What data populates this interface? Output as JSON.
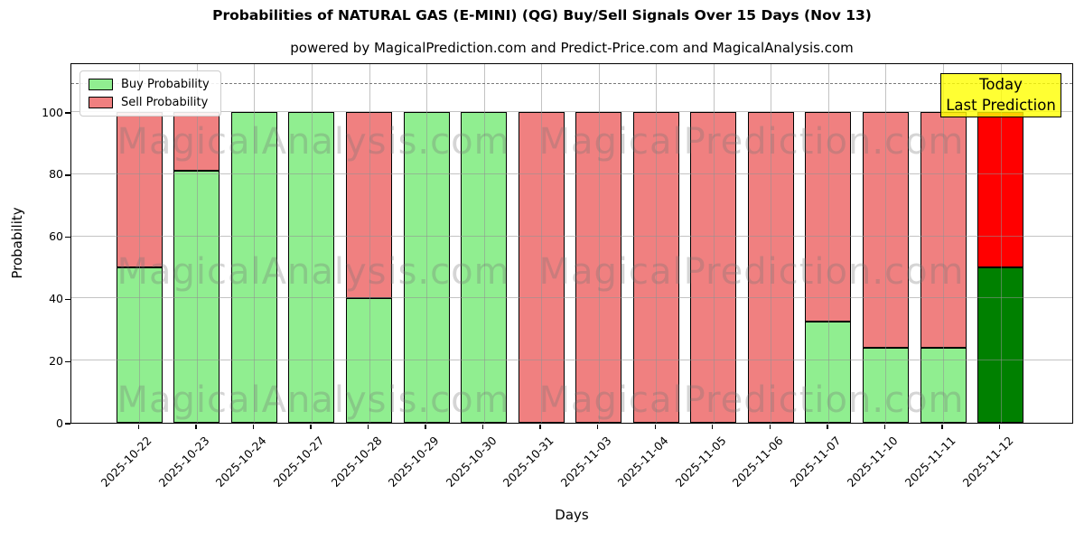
{
  "figure": {
    "title": "Probabilities of NATURAL GAS (E-MINI) (QG) Buy/Sell Signals Over 15 Days (Nov 13)",
    "subtitle": "powered by MagicalPrediction.com and Predict-Price.com and MagicalAnalysis.com"
  },
  "chart_data": {
    "type": "bar",
    "stacked": true,
    "title": "Probabilities of NATURAL GAS (E-MINI) (QG) Buy/Sell Signals Over 15 Days (Nov 13)",
    "subtitle": "powered by MagicalPrediction.com and Predict-Price.com and MagicalAnalysis.com",
    "xlabel": "Days",
    "ylabel": "Probability",
    "ylim": [
      0,
      116
    ],
    "yticks": [
      0,
      20,
      40,
      60,
      80,
      100
    ],
    "dashed_guide_y": 110,
    "grid": true,
    "legend_position": "upper left",
    "categories": [
      "2025-10-22",
      "2025-10-23",
      "2025-10-24",
      "2025-10-27",
      "2025-10-28",
      "2025-10-29",
      "2025-10-30",
      "2025-10-31",
      "2025-11-03",
      "2025-11-04",
      "2025-11-05",
      "2025-11-06",
      "2025-11-07",
      "2025-11-10",
      "2025-11-11",
      "2025-11-12"
    ],
    "series": [
      {
        "name": "Buy Probability",
        "color": "#90EE90",
        "today_color": "#008000",
        "values": [
          50,
          81,
          100,
          100,
          40,
          100,
          100,
          0,
          0,
          0,
          0,
          0,
          32.5,
          24,
          24,
          50
        ]
      },
      {
        "name": "Sell Probability",
        "color": "#F08080",
        "today_color": "#FF0000",
        "values": [
          50,
          19,
          0,
          0,
          60,
          0,
          0,
          100,
          100,
          100,
          100,
          100,
          67.5,
          76,
          76,
          50
        ]
      }
    ],
    "today_index": 15,
    "annotations": {
      "today_box": {
        "lines": [
          "Today",
          "Last Prediction"
        ],
        "bg": "#FFFF00"
      }
    },
    "watermarks": {
      "left_text": "MagicalAnalysis.com",
      "right_text": "MagicalPrediction.com"
    }
  }
}
